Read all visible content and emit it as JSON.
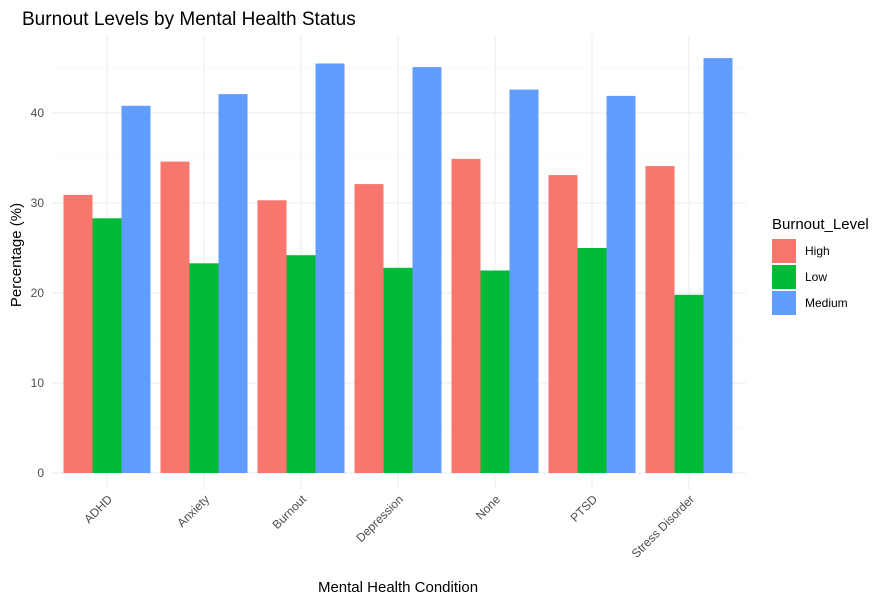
{
  "chart_data": {
    "type": "bar",
    "title": "Burnout Levels by Mental Health Status",
    "xlabel": "Mental Health Condition",
    "ylabel": "Percentage (%)",
    "ylim": [
      0,
      48
    ],
    "yticks": [
      0,
      10,
      20,
      30,
      40
    ],
    "grid": true,
    "legend": {
      "title": "Burnout_Level",
      "position": "right"
    },
    "categories": [
      "ADHD",
      "Anxiety",
      "Burnout",
      "Depression",
      "None",
      "PTSD",
      "Stress Disorder"
    ],
    "series": [
      {
        "name": "High",
        "color": "#F8766D",
        "values": [
          30.9,
          34.6,
          30.3,
          32.1,
          34.9,
          33.1,
          34.1
        ]
      },
      {
        "name": "Low",
        "color": "#00BA38",
        "values": [
          28.3,
          23.3,
          24.2,
          22.8,
          22.5,
          25.0,
          19.8
        ]
      },
      {
        "name": "Medium",
        "color": "#619CFF",
        "values": [
          40.8,
          42.1,
          45.5,
          45.1,
          42.6,
          41.9,
          46.1
        ]
      }
    ]
  }
}
